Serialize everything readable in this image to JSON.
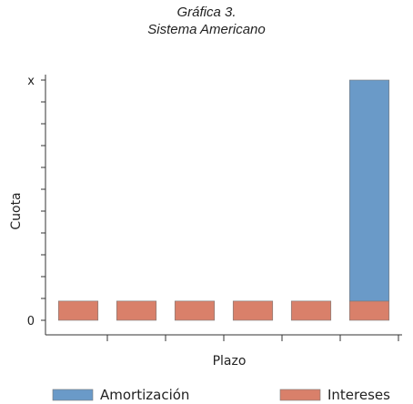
{
  "chart_data": {
    "type": "bar",
    "stacked": true,
    "title": "Gráfica 3.",
    "subtitle": "Sistema Americano",
    "xlabel": "Plazo",
    "ylabel": "Cuota",
    "y_ticks": [
      "0",
      "x"
    ],
    "ylim": [
      0,
      1
    ],
    "categories": [
      "",
      "",
      "",
      "",
      "",
      ""
    ],
    "series": [
      {
        "name": "Intereses",
        "color": "#d9806a",
        "values": [
          0.08,
          0.08,
          0.08,
          0.08,
          0.08,
          0.08
        ]
      },
      {
        "name": "Amortización",
        "color": "#6a9ac8",
        "values": [
          0,
          0,
          0,
          0,
          0,
          0.92
        ]
      }
    ],
    "legend": {
      "placement": "bottom",
      "items": [
        "Amortización",
        "Intereses"
      ]
    },
    "grid": false
  }
}
